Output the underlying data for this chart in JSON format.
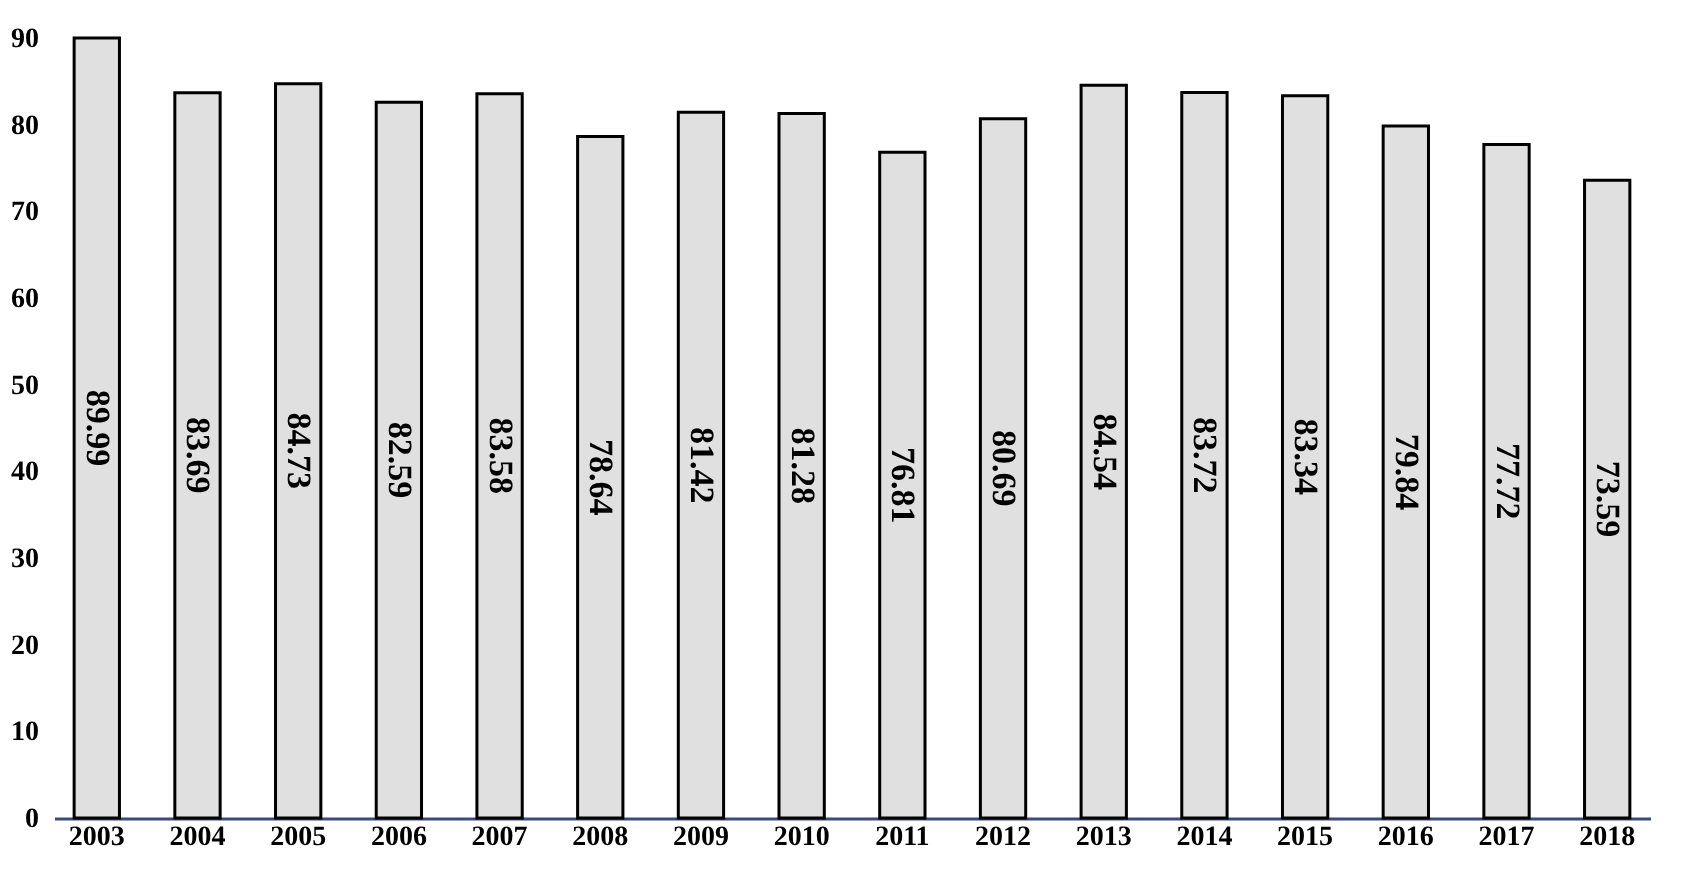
{
  "chart_data": {
    "type": "bar",
    "categories": [
      "2003",
      "2004",
      "2005",
      "2006",
      "2007",
      "2008",
      "2009",
      "2010",
      "2011",
      "2012",
      "2013",
      "2014",
      "2015",
      "2016",
      "2017",
      "2018"
    ],
    "values": [
      89.99,
      83.69,
      84.73,
      82.59,
      83.58,
      78.64,
      81.42,
      81.28,
      76.81,
      80.69,
      84.54,
      83.72,
      83.34,
      79.84,
      77.72,
      73.59
    ],
    "color": "#e0e0e0",
    "ylim": [
      0,
      90
    ],
    "yticks": [
      0,
      10,
      20,
      30,
      40,
      50,
      60,
      70,
      80,
      90
    ],
    "grid": false,
    "data_labels": true
  }
}
